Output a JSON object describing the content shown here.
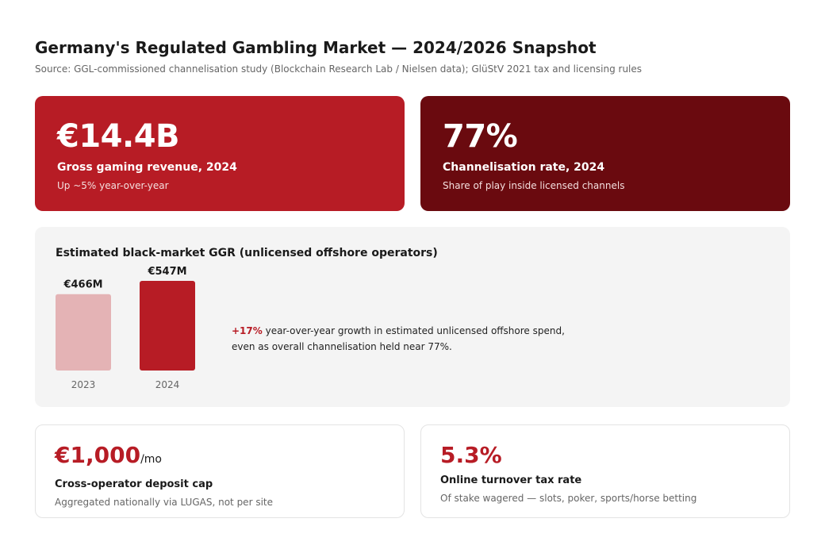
{
  "header": {
    "title": "Germany's Regulated Gambling Market — 2024/2026 Snapshot",
    "source": "Source: GGL-commissioned channelisation study (Blockchain Research Lab / Nielsen data); GlüStV 2021 tax and licensing rules"
  },
  "kpi_ggr": {
    "value": "€14.4B",
    "label": "Gross gaming revenue, 2024",
    "sub": "Up ~5% year-over-year"
  },
  "kpi_channel": {
    "value": "77%",
    "label": "Channelisation rate, 2024",
    "sub": "Share of play inside licensed channels"
  },
  "black_market": {
    "title": "Estimated black-market GGR (unlicensed offshore operators)",
    "note_accent": "+17%",
    "note_text": " year-over-year growth in estimated unlicensed offshore spend,",
    "note_text2": "even as overall channelisation held near 77%."
  },
  "chart_data": {
    "type": "bar",
    "title": "Estimated black-market GGR (unlicensed offshore operators)",
    "categories": [
      "2023",
      "2024"
    ],
    "values": [
      466,
      547
    ],
    "value_labels": [
      "€466M",
      "€547M"
    ],
    "unit": "€M",
    "colors": [
      "#e4b3b5",
      "#b71c25"
    ],
    "grid": false,
    "legend": "none"
  },
  "kpi_deposit": {
    "value": "€1,000",
    "unit": "/mo",
    "label": "Cross-operator deposit cap",
    "sub": "Aggregated nationally via LUGAS, not per site"
  },
  "kpi_tax": {
    "value": "5.3%",
    "label": "Online turnover tax rate",
    "sub": "Of stake wagered — slots, poker, sports/horse betting"
  }
}
